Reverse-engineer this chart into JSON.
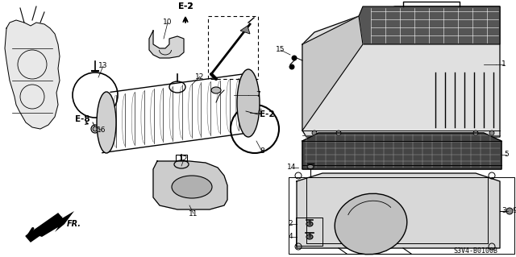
{
  "bg": "#ffffff",
  "diagram_code": "S3V4-B0100B",
  "figsize": [
    6.4,
    3.19
  ],
  "dpi": 100
}
